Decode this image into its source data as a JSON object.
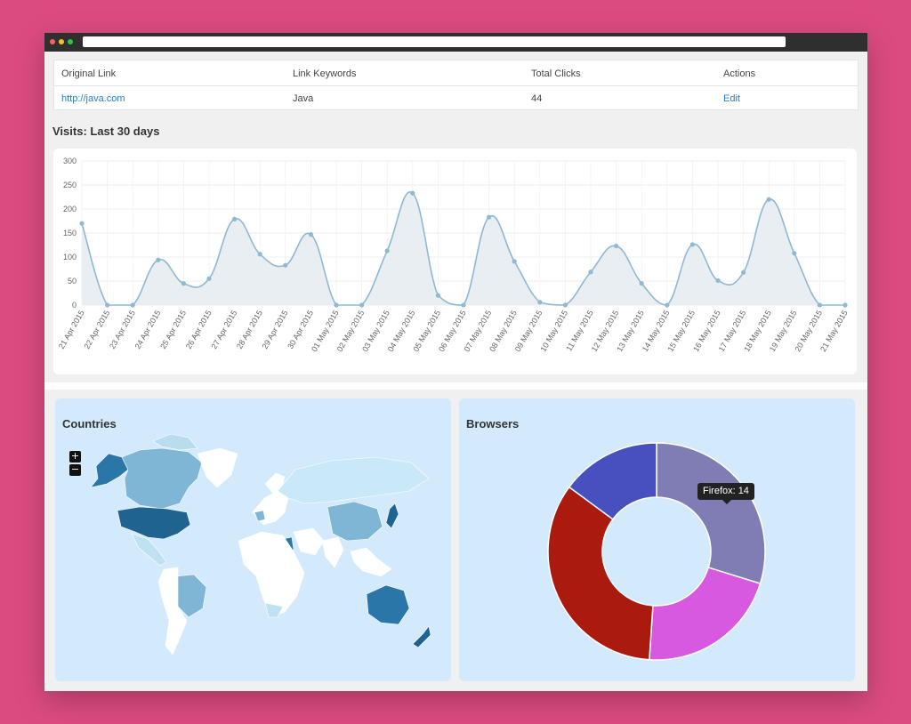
{
  "table": {
    "headers": [
      "Original Link",
      "Link Keywords",
      "Total Clicks",
      "Actions"
    ],
    "row": {
      "original_link": "http://java.com",
      "keywords": "Java",
      "total_clicks": "44",
      "action": "Edit"
    }
  },
  "visits": {
    "title": "Visits: Last 30 days"
  },
  "chart_data": {
    "type": "area",
    "x": [
      "21 Apr 2015",
      "22 Apr 2015",
      "23 Apr 2015",
      "24 Apr 2015",
      "25 Apr 2015",
      "26 Apr 2015",
      "27 Apr 2015",
      "28 Apr 2015",
      "29 Apr 2015",
      "30 Apr 2015",
      "01 May 2015",
      "02 May 2015",
      "03 May 2015",
      "04 May 2015",
      "05 May 2015",
      "06 May 2015",
      "07 May 2015",
      "08 May 2015",
      "09 May 2015",
      "10 May 2015",
      "11 May 2015",
      "12 May 2015",
      "13 May 2015",
      "14 May 2015",
      "15 May 2015",
      "16 May 2015",
      "17 May 2015",
      "18 May 2015",
      "19 May 2015",
      "20 May 2015",
      "21 May 2015"
    ],
    "values": [
      170,
      0,
      0,
      94,
      45,
      55,
      179,
      106,
      83,
      147,
      0,
      0,
      113,
      233,
      20,
      0,
      183,
      91,
      6,
      0,
      69,
      123,
      45,
      0,
      126,
      51,
      68,
      220,
      108,
      0,
      0
    ],
    "yticks": [
      0,
      50,
      100,
      150,
      200,
      250,
      300
    ],
    "ylim": [
      0,
      300
    ],
    "grid": true,
    "line_color": "#8fb8d2",
    "fill_color": "#e8eef1"
  },
  "countries": {
    "title": "Countries",
    "zoom_in": "+",
    "zoom_out": "−",
    "map_icon": "world-map"
  },
  "browsers": {
    "title": "Browsers",
    "tooltip_label": "Firefox:",
    "tooltip_value": "14",
    "slices": [
      {
        "value": 14,
        "color": "#7f7db3"
      },
      {
        "value": 10,
        "color": "#d659e0"
      },
      {
        "value": 16,
        "color": "#aa1a0e"
      },
      {
        "value": 7,
        "color": "#4750be"
      }
    ]
  }
}
